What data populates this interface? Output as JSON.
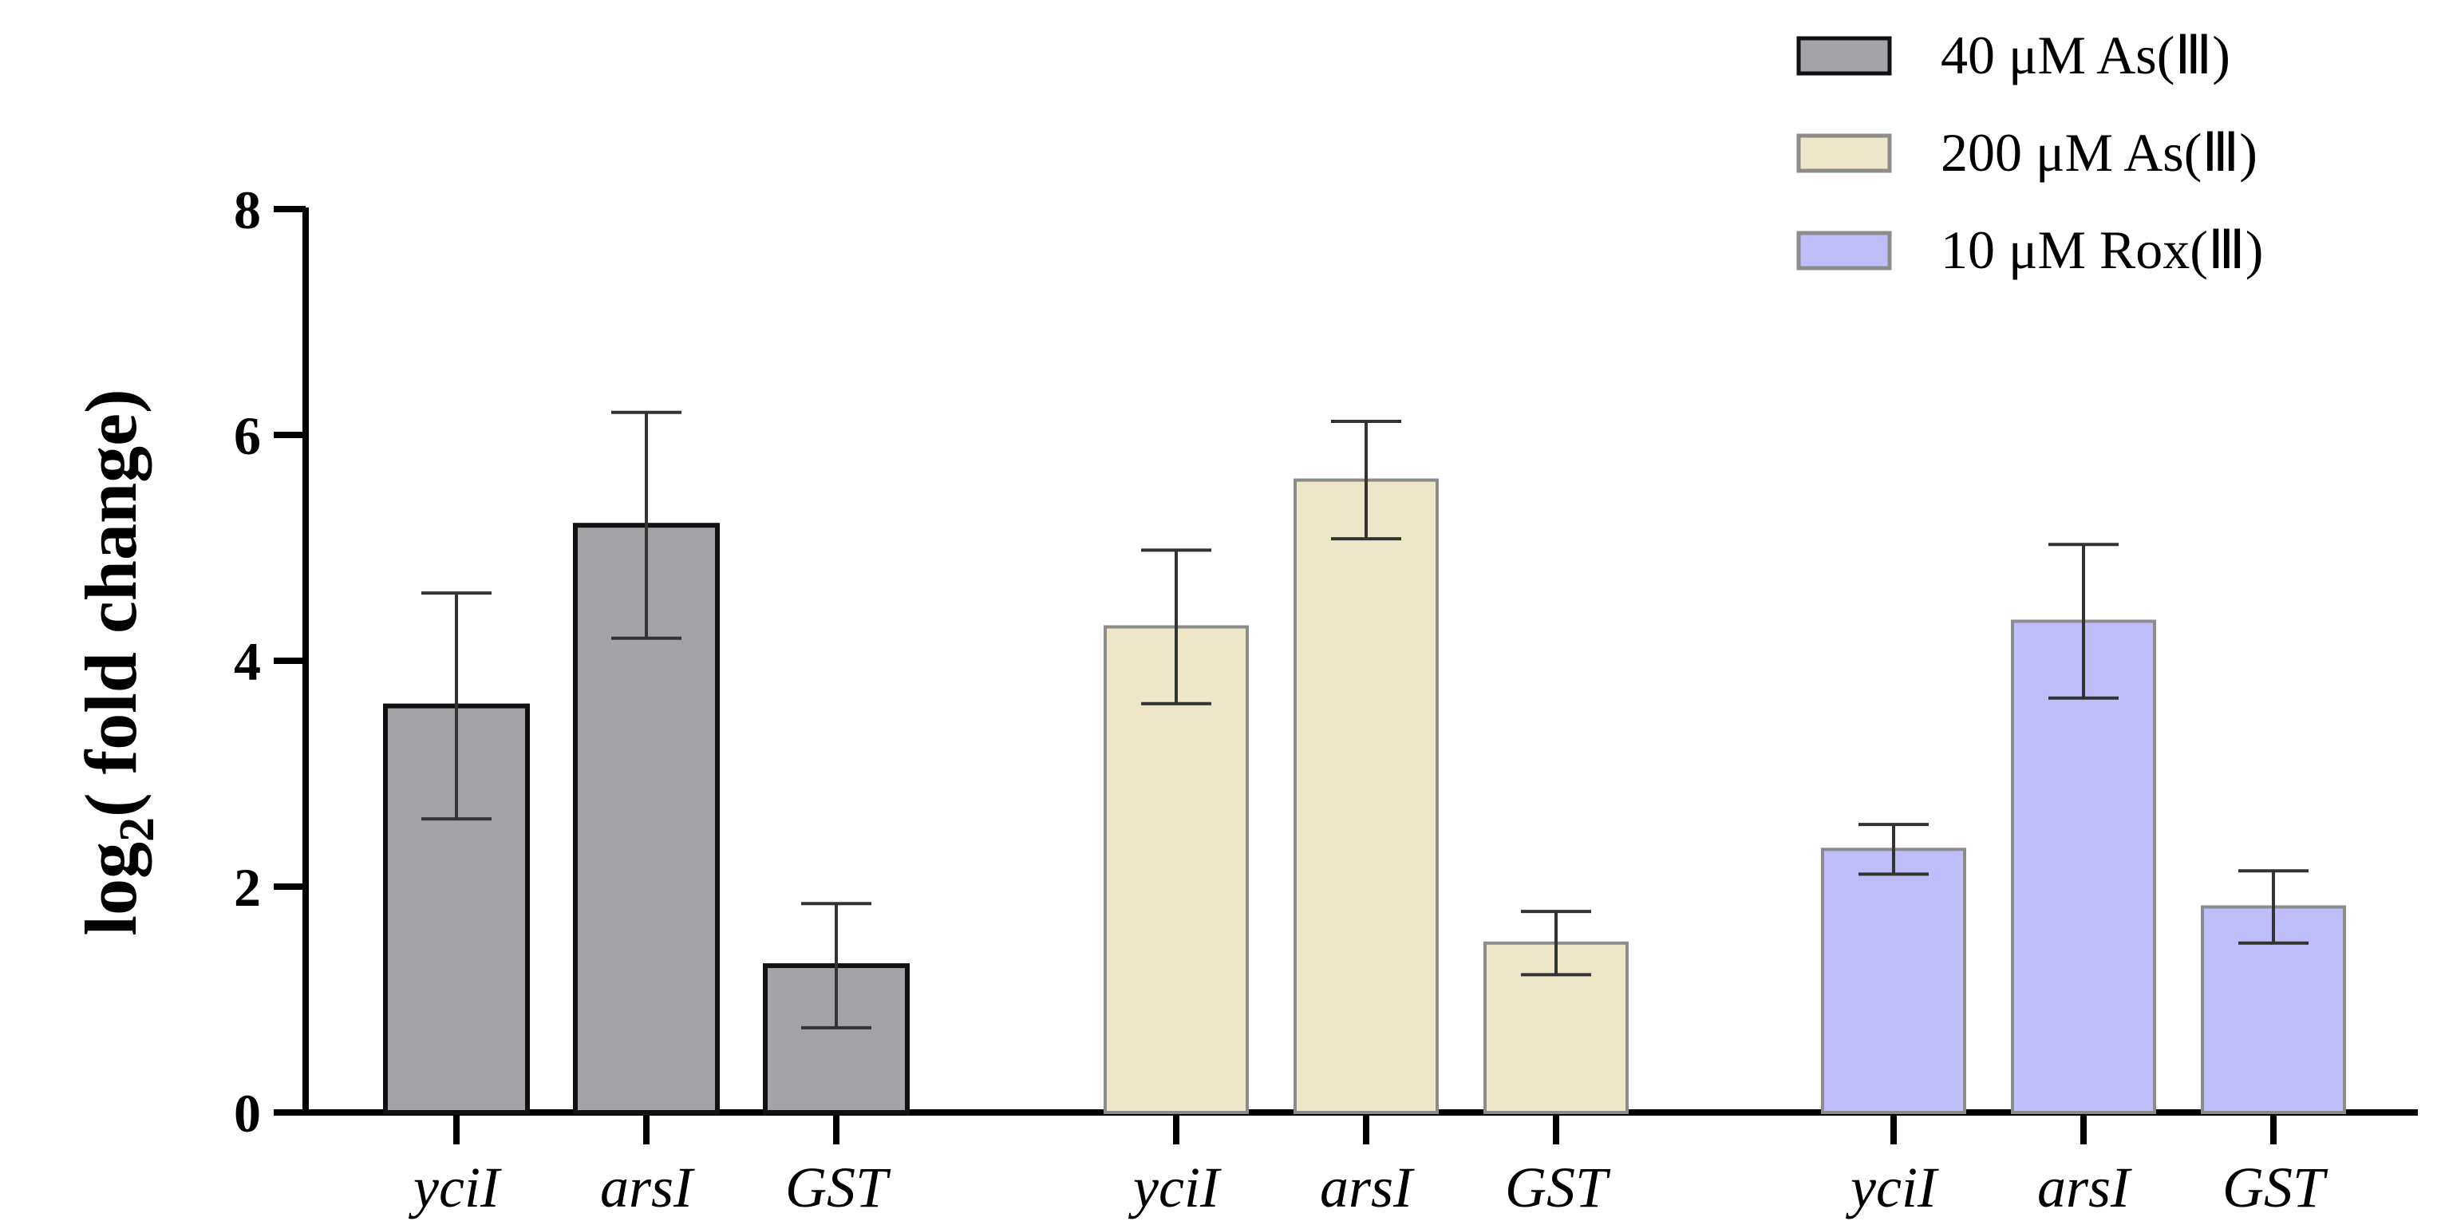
{
  "chart_data": {
    "type": "bar",
    "title": "",
    "ylabel_prefix": "log",
    "ylabel_sub": "2",
    "ylabel_suffix": "( fold change)",
    "xlabel": "",
    "ylim": [
      0,
      8
    ],
    "yticks": [
      "0",
      "2",
      "4",
      "6",
      "8"
    ],
    "categories": [
      "yciI",
      "arsI",
      "GST"
    ],
    "series": [
      {
        "name": "40 μM As(Ⅲ)",
        "color": "#a3a3a8",
        "edge": "#111111",
        "values": [
          3.6,
          5.2,
          1.3
        ],
        "errors": [
          1.0,
          1.0,
          0.55
        ]
      },
      {
        "name": "200 μM As(Ⅲ)",
        "color": "#ede6c9",
        "edge": "#8c8c8c",
        "values": [
          4.3,
          5.6,
          1.5
        ],
        "errors": [
          0.68,
          0.52,
          0.28
        ]
      },
      {
        "name": "10 μM Rox(Ⅲ)",
        "color": "#c0befa",
        "edge": "#8c8c8c",
        "values": [
          2.33,
          4.35,
          1.82
        ],
        "errors": [
          0.22,
          0.68,
          0.32
        ]
      }
    ]
  }
}
